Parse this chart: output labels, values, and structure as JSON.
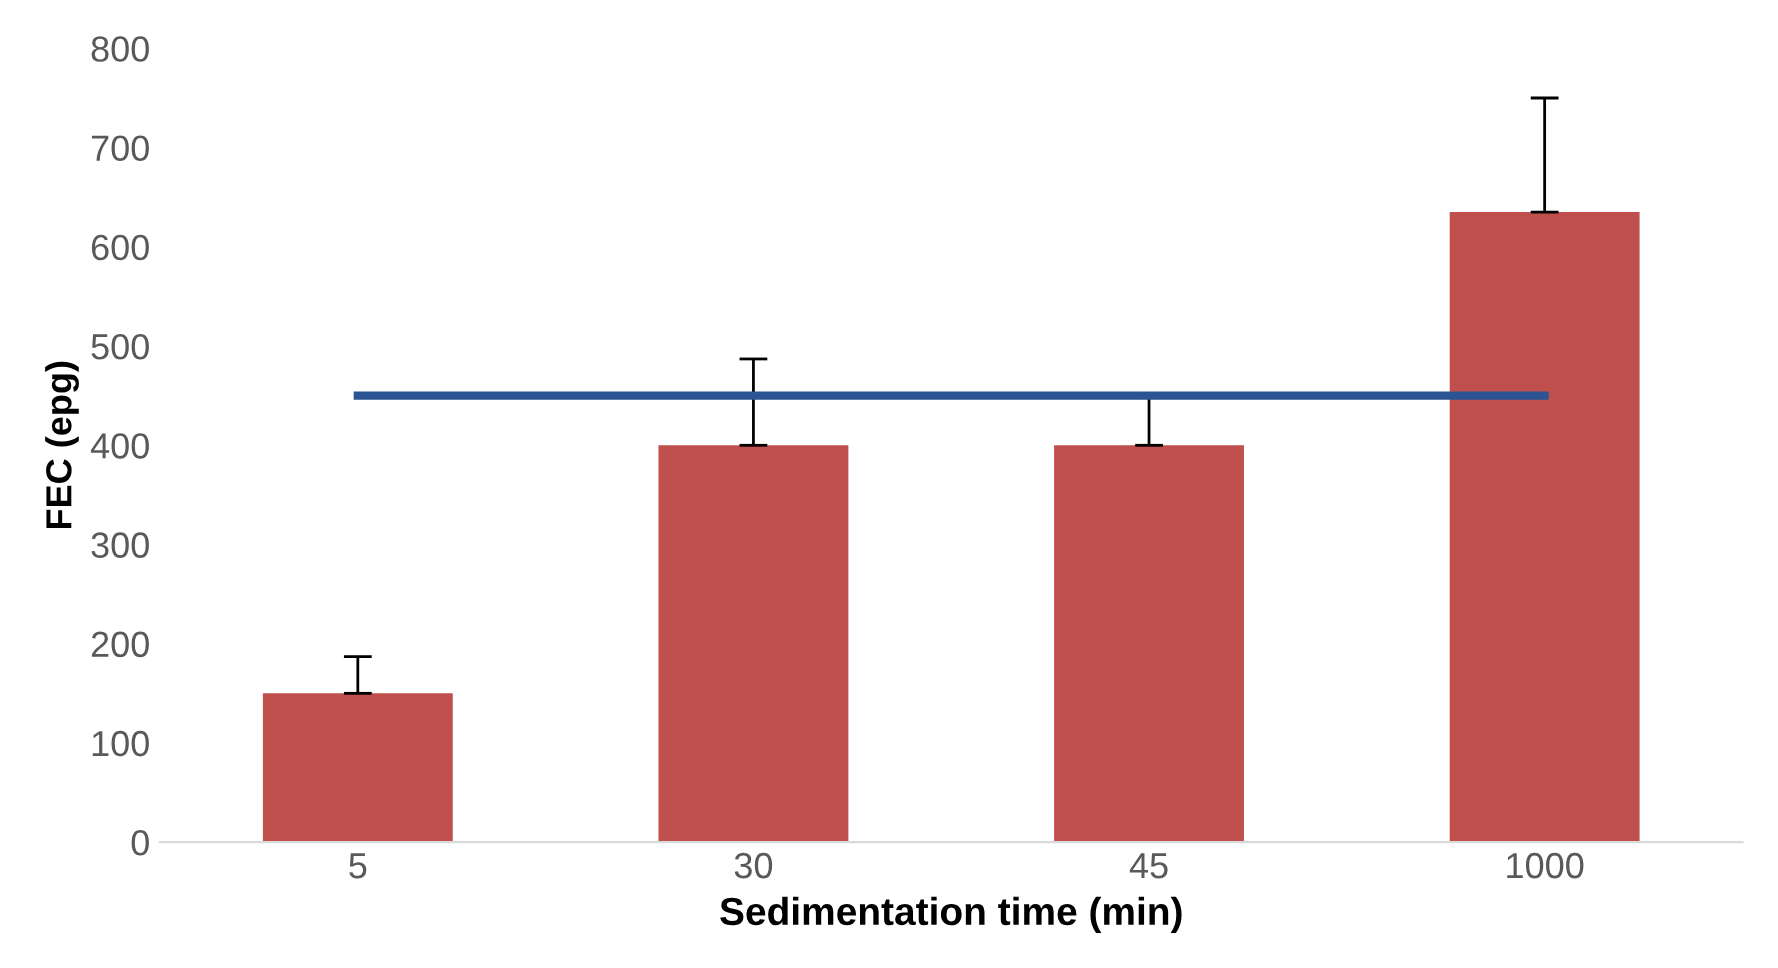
{
  "chart_data": {
    "type": "bar",
    "xlabel": "Sedimentation time (min)",
    "ylabel": "FEC (epg)",
    "categories": [
      "5",
      "30",
      "45",
      "1000"
    ],
    "series": [
      {
        "color": "#c0504d",
        "values": [
          150,
          400,
          400,
          635
        ],
        "errors": [
          [
            150,
            187
          ],
          [
            400,
            487
          ],
          [
            400,
            448
          ],
          [
            635,
            750
          ]
        ]
      },
      {
        "type": "line",
        "color": "#2a5592",
        "values": [
          450,
          450,
          450,
          450
        ],
        "marker": "none"
      }
    ],
    "ylim": [
      0,
      800
    ],
    "yticks": [
      0,
      100,
      200,
      300,
      400,
      500,
      600,
      700,
      800
    ],
    "grid": false,
    "legend": false
  }
}
